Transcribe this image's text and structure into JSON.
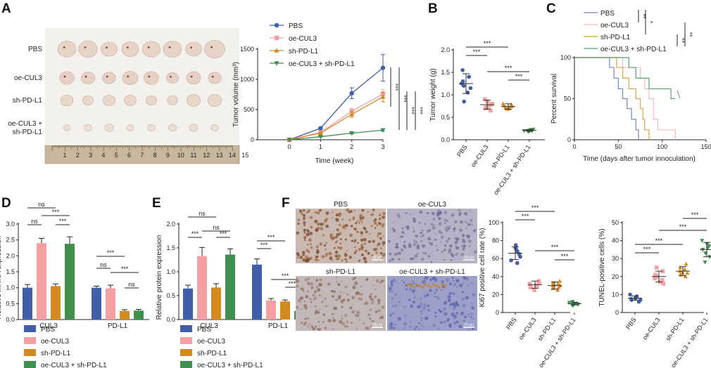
{
  "panel_labels": [
    "A",
    "B",
    "C",
    "D",
    "E",
    "F"
  ],
  "chart_data": [
    {
      "id": "A-photo",
      "type": "image",
      "row_labels": [
        "PBS",
        "oe-CUL3",
        "sh-PD-L1",
        "oe-CUL3 +\nsh-PD-L1"
      ],
      "ruler_ticks": [
        "1",
        "2",
        "3",
        "4",
        "5",
        "6",
        "7",
        "8",
        "9",
        "10",
        "11",
        "12",
        "13",
        "14",
        "15"
      ]
    },
    {
      "id": "A-volume",
      "type": "line",
      "x": [
        0,
        1,
        2,
        3
      ],
      "xlabel": "Time (week)",
      "ylabel": "Tumor volume (mm³)",
      "xlim": [
        0,
        3
      ],
      "ylim": [
        0,
        1500
      ],
      "yticks": [
        0,
        500,
        1000,
        1500
      ],
      "series": [
        {
          "name": "PBS",
          "values": [
            0,
            190,
            770,
            1190
          ],
          "err": [
            0,
            20,
            90,
            220
          ],
          "color": "#3f5fa8",
          "marker": "circle"
        },
        {
          "name": "oe-CUL3",
          "values": [
            0,
            120,
            470,
            760
          ],
          "err": [
            0,
            15,
            50,
            70
          ],
          "color": "#f4a0a3",
          "marker": "square"
        },
        {
          "name": "sh-PD-L1",
          "values": [
            0,
            110,
            420,
            710
          ],
          "err": [
            0,
            15,
            50,
            80
          ],
          "color": "#d38a1f",
          "marker": "triangle"
        },
        {
          "name": "oe-CUL3 + sh-PD-L1",
          "values": [
            0,
            50,
            110,
            160
          ],
          "err": [
            0,
            5,
            15,
            20
          ],
          "color": "#3f8f4f",
          "marker": "triangle-down"
        }
      ],
      "significance": [
        "***",
        "***",
        "***",
        "***"
      ]
    },
    {
      "id": "B",
      "type": "scatter",
      "categories": [
        "PBS",
        "oe-CUL3",
        "sh-PD-L1",
        "oe-CUL3 + sh-PD-L1"
      ],
      "ylabel": "Tumor weight (g)",
      "ylim": [
        0,
        2.0
      ],
      "yticks": [
        "0.0",
        "0.5",
        "1.0",
        "1.5",
        "2.0"
      ],
      "points": [
        [
          1.05,
          1.15,
          1.2,
          1.25,
          1.3,
          1.4,
          1.55,
          0.85
        ],
        [
          0.65,
          0.7,
          0.75,
          0.78,
          0.8,
          0.85,
          0.9,
          0.72
        ],
        [
          0.68,
          0.7,
          0.72,
          0.74,
          0.76,
          0.78,
          0.8,
          0.7
        ],
        [
          0.18,
          0.2,
          0.21,
          0.22,
          0.2,
          0.19,
          0.23,
          0.2
        ]
      ],
      "means": [
        1.25,
        0.78,
        0.74,
        0.21
      ],
      "sds": [
        0.22,
        0.1,
        0.06,
        0.02
      ],
      "colors": [
        "#3f5fa8",
        "#f4a0a3",
        "#d38a1f",
        "#3f8f4f"
      ],
      "markers": [
        "circle",
        "square",
        "triangle",
        "triangle-down"
      ],
      "significance": [
        "***",
        "***",
        "***",
        "***"
      ]
    },
    {
      "id": "C",
      "type": "line",
      "xlabel": "Time (days after tumor innoculation)",
      "ylabel": "Percent survival",
      "xlim": [
        0,
        150
      ],
      "ylim": [
        0,
        100
      ],
      "xticks": [
        0,
        50,
        100,
        150
      ],
      "yticks": [
        0,
        50,
        100
      ],
      "series": [
        {
          "name": "PBS",
          "color": "#6f89c4",
          "steps": [
            [
              0,
              100
            ],
            [
              40,
              100
            ],
            [
              40,
              88
            ],
            [
              45,
              88
            ],
            [
              45,
              75
            ],
            [
              50,
              75
            ],
            [
              50,
              62
            ],
            [
              55,
              62
            ],
            [
              55,
              50
            ],
            [
              60,
              50
            ],
            [
              60,
              38
            ],
            [
              65,
              38
            ],
            [
              65,
              25
            ],
            [
              70,
              25
            ],
            [
              70,
              12
            ],
            [
              73,
              12
            ],
            [
              73,
              0
            ]
          ]
        },
        {
          "name": "oe-CUL3",
          "color": "#f7b8ba",
          "steps": [
            [
              0,
              100
            ],
            [
              55,
              100
            ],
            [
              55,
              88
            ],
            [
              75,
              88
            ],
            [
              75,
              75
            ],
            [
              80,
              75
            ],
            [
              80,
              62
            ],
            [
              85,
              62
            ],
            [
              85,
              50
            ],
            [
              90,
              50
            ],
            [
              90,
              25
            ],
            [
              95,
              25
            ],
            [
              95,
              12
            ],
            [
              115,
              12
            ],
            [
              115,
              0
            ]
          ]
        },
        {
          "name": "sh-PD-L1",
          "color": "#e0a040",
          "steps": [
            [
              0,
              100
            ],
            [
              48,
              100
            ],
            [
              48,
              88
            ],
            [
              55,
              88
            ],
            [
              55,
              75
            ],
            [
              62,
              75
            ],
            [
              62,
              62
            ],
            [
              70,
              62
            ],
            [
              70,
              50
            ],
            [
              75,
              50
            ],
            [
              75,
              38
            ],
            [
              78,
              38
            ],
            [
              78,
              25
            ],
            [
              80,
              25
            ],
            [
              80,
              12
            ],
            [
              85,
              12
            ],
            [
              85,
              0
            ]
          ]
        },
        {
          "name": "oe-CUL3 + sh-PD-L1",
          "color": "#5aa06a",
          "steps": [
            [
              0,
              100
            ],
            [
              62,
              100
            ],
            [
              62,
              88
            ],
            [
              70,
              88
            ],
            [
              70,
              75
            ],
            [
              85,
              75
            ],
            [
              85,
              62
            ],
            [
              110,
              62
            ],
            [
              110,
              50
            ],
            [
              115,
              50
            ]
          ]
        }
      ],
      "significance": [
        "**",
        "*",
        "**",
        "**"
      ]
    },
    {
      "id": "D",
      "type": "bar",
      "groups": [
        "CUL3",
        "PD-L1"
      ],
      "ylabel": "Relative mRNA expression",
      "ylim": [
        0,
        3.0
      ],
      "yticks": [
        "0.0",
        "0.5",
        "1.0",
        "1.5",
        "2.0",
        "2.5",
        "3.0"
      ],
      "series": [
        {
          "name": "PBS",
          "values": [
            1.0,
            1.0
          ],
          "err": [
            0.1,
            0.05
          ],
          "color": "#3f5fa8"
        },
        {
          "name": "oe-CUL3",
          "values": [
            2.4,
            0.98
          ],
          "err": [
            0.15,
            0.1
          ],
          "color": "#f4a0a3"
        },
        {
          "name": "sh-PD-L1",
          "values": [
            1.05,
            0.27
          ],
          "err": [
            0.07,
            0.04
          ],
          "color": "#d38a1f"
        },
        {
          "name": "oe-CUL3 + sh-PD-L1",
          "values": [
            2.38,
            0.28
          ],
          "err": [
            0.22,
            0.04
          ],
          "color": "#3f8f4f"
        }
      ],
      "legend": [
        "PBS",
        "oe-CUL3",
        "sh-PD-L1",
        "oe-CUL3 + sh-PD-L1"
      ],
      "significance": [
        "ns",
        "***",
        "ns",
        "***",
        "ns",
        "***",
        "***",
        "ns"
      ]
    },
    {
      "id": "E",
      "type": "bar",
      "groups": [
        "CUL3",
        "PD-L1"
      ],
      "ylabel": "Relative protein expression",
      "ylim": [
        0,
        2.0
      ],
      "yticks": [
        "0.0",
        "0.5",
        "1.0",
        "1.5",
        "2.0"
      ],
      "series": [
        {
          "name": "PBS",
          "values": [
            0.65,
            1.15
          ],
          "err": [
            0.07,
            0.12
          ],
          "color": "#3f5fa8"
        },
        {
          "name": "oe-CUL3",
          "values": [
            1.33,
            0.4
          ],
          "err": [
            0.18,
            0.04
          ],
          "color": "#f4a0a3"
        },
        {
          "name": "sh-PD-L1",
          "values": [
            0.67,
            0.38
          ],
          "err": [
            0.08,
            0.03
          ],
          "color": "#d38a1f"
        },
        {
          "name": "oe-CUL3 + sh-PD-L1",
          "values": [
            1.36,
            0.18
          ],
          "err": [
            0.12,
            0.02
          ],
          "color": "#3f8f4f"
        }
      ],
      "legend": [
        "PBS",
        "oe-CUL3",
        "sh-PD-L1",
        "oe-CUL3 + sh-PD-L1"
      ],
      "significance": [
        "ns",
        "***",
        "ns",
        "***",
        "***",
        "***",
        "***",
        "***"
      ]
    },
    {
      "id": "F-images",
      "type": "image",
      "labels": [
        "PBS",
        "oe-CUL3",
        "sh-PD-L1",
        "oe-CUL3 + sh-PD-L1"
      ],
      "scale_label": "20 μm"
    },
    {
      "id": "F-ki67",
      "type": "scatter",
      "categories": [
        "PBS",
        "oe-CUL3",
        "sh-PD-L1",
        "oe-CUL3 + sh-PD-L1"
      ],
      "ylabel": "Ki67 positive cell rate (%)",
      "ylim": [
        0,
        100
      ],
      "yticks": [
        0,
        20,
        40,
        60,
        80,
        100
      ],
      "points": [
        [
          58,
          62,
          65,
          68,
          70,
          72,
          75,
          55
        ],
        [
          25,
          28,
          30,
          32,
          35,
          33,
          30,
          28
        ],
        [
          25,
          28,
          30,
          32,
          35,
          30,
          27,
          33
        ],
        [
          8,
          9,
          10,
          11,
          10,
          9,
          12,
          8
        ]
      ],
      "means": [
        66,
        31,
        30,
        10
      ],
      "sds": [
        7,
        4,
        4,
        1.5
      ],
      "colors": [
        "#3f5fa8",
        "#f4a0a3",
        "#d38a1f",
        "#3f8f4f"
      ],
      "markers": [
        "circle",
        "square",
        "triangle",
        "triangle-down"
      ],
      "significance": [
        "***",
        "***",
        "***",
        "***"
      ]
    },
    {
      "id": "F-tunel",
      "type": "scatter",
      "categories": [
        "PBS",
        "oe-CUL3",
        "sh-PD-L1",
        "oe-CUL3 + sh-PD-L1"
      ],
      "ylabel": "TUNEL-positive cells (%)",
      "ylim": [
        0,
        50
      ],
      "yticks": [
        0,
        10,
        20,
        30,
        40,
        50
      ],
      "points": [
        [
          6,
          7,
          7.5,
          8,
          8.5,
          9,
          10,
          7
        ],
        [
          16,
          18,
          19,
          20,
          21,
          23,
          25,
          17
        ],
        [
          20,
          21,
          22,
          23,
          24,
          25,
          27,
          22
        ],
        [
          28,
          31,
          33,
          35,
          36,
          38,
          40,
          37
        ]
      ],
      "means": [
        8,
        20,
        23,
        35
      ],
      "sds": [
        1.2,
        3,
        2.5,
        4
      ],
      "colors": [
        "#3f5fa8",
        "#f4a0a3",
        "#d38a1f",
        "#3f8f4f"
      ],
      "markers": [
        "circle",
        "square",
        "triangle",
        "triangle-down"
      ],
      "significance": [
        "***",
        "***",
        "***",
        "***"
      ]
    }
  ]
}
